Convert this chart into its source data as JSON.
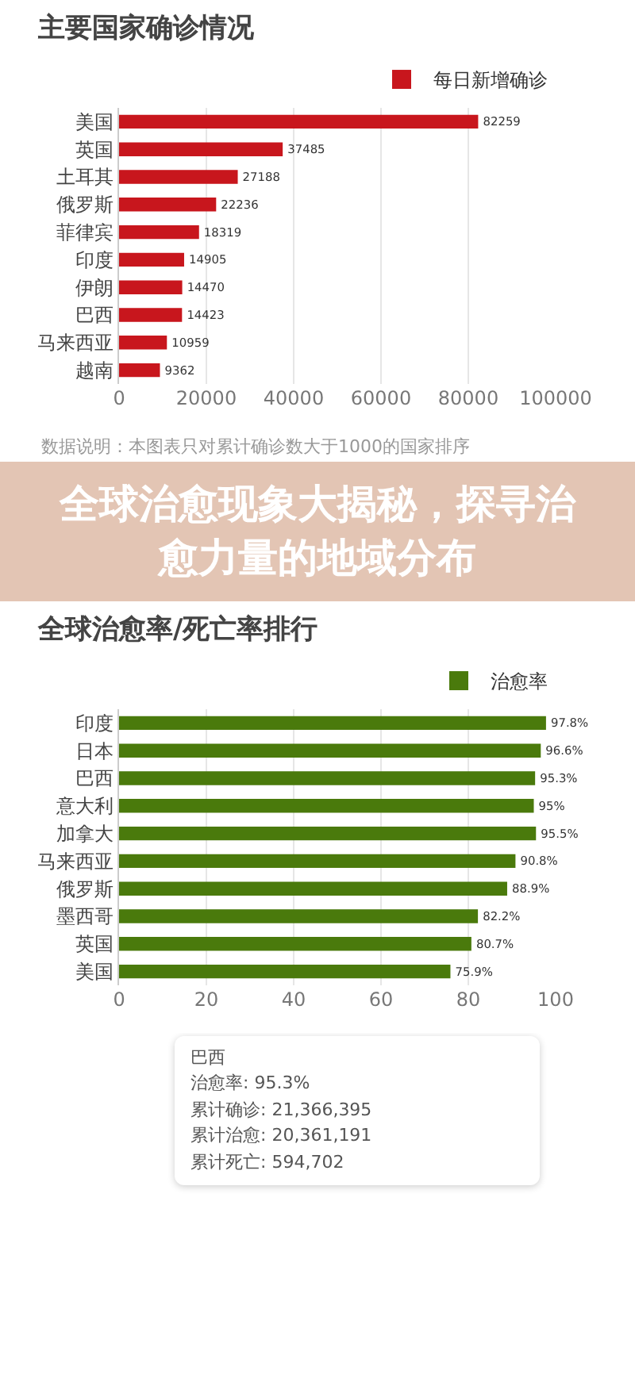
{
  "chart_data": [
    {
      "type": "bar",
      "orientation": "horizontal",
      "title": "主要国家确诊情况",
      "categories": [
        "美国",
        "英国",
        "土耳其",
        "俄罗斯",
        "菲律宾",
        "印度",
        "伊朗",
        "巴西",
        "马来西亚",
        "越南"
      ],
      "series": [
        {
          "name": "每日新增确诊",
          "color": "#c8161d",
          "values": [
            82259,
            37485,
            27188,
            22236,
            18319,
            14905,
            14470,
            14423,
            10959,
            9362
          ]
        }
      ],
      "xlim": [
        0,
        100000
      ],
      "xticks": [
        0,
        20000,
        40000,
        60000,
        80000,
        100000
      ],
      "grid": "x",
      "legend": "top right",
      "data_labels": true,
      "annotations": [
        "数据说明：本图表只对累计确诊数大于1000的国家排序",
        "全球治愈现象大揭秘，探寻治愈力量的地域分布"
      ]
    },
    {
      "type": "bar",
      "orientation": "horizontal",
      "title": "全球治愈率/死亡率排行",
      "categories": [
        "印度",
        "日本",
        "巴西",
        "意大利",
        "加拿大",
        "马来西亚",
        "俄罗斯",
        "墨西哥",
        "英国",
        "美国"
      ],
      "series": [
        {
          "name": "治愈率",
          "color": "#4a7a0c",
          "values": [
            97.8,
            96.6,
            95.3,
            95,
            95.5,
            90.8,
            88.9,
            82.2,
            80.7,
            75.9
          ],
          "value_labels": [
            "97.8%",
            "96.6%",
            "95.3%",
            "95%",
            "95.5%",
            "90.8%",
            "88.9%",
            "82.2%",
            "80.7%",
            "75.9%"
          ]
        }
      ],
      "xlim": [
        0,
        100
      ],
      "xticks": [
        0,
        20,
        40,
        60,
        80,
        100
      ],
      "grid": "x",
      "legend": "top right",
      "annotations": [
        "巴西",
        "治愈率: 95.3%",
        "累计确诊: 21,366,395",
        "累计治愈: 20,361,191",
        "累计死亡: 594,702"
      ]
    }
  ]
}
